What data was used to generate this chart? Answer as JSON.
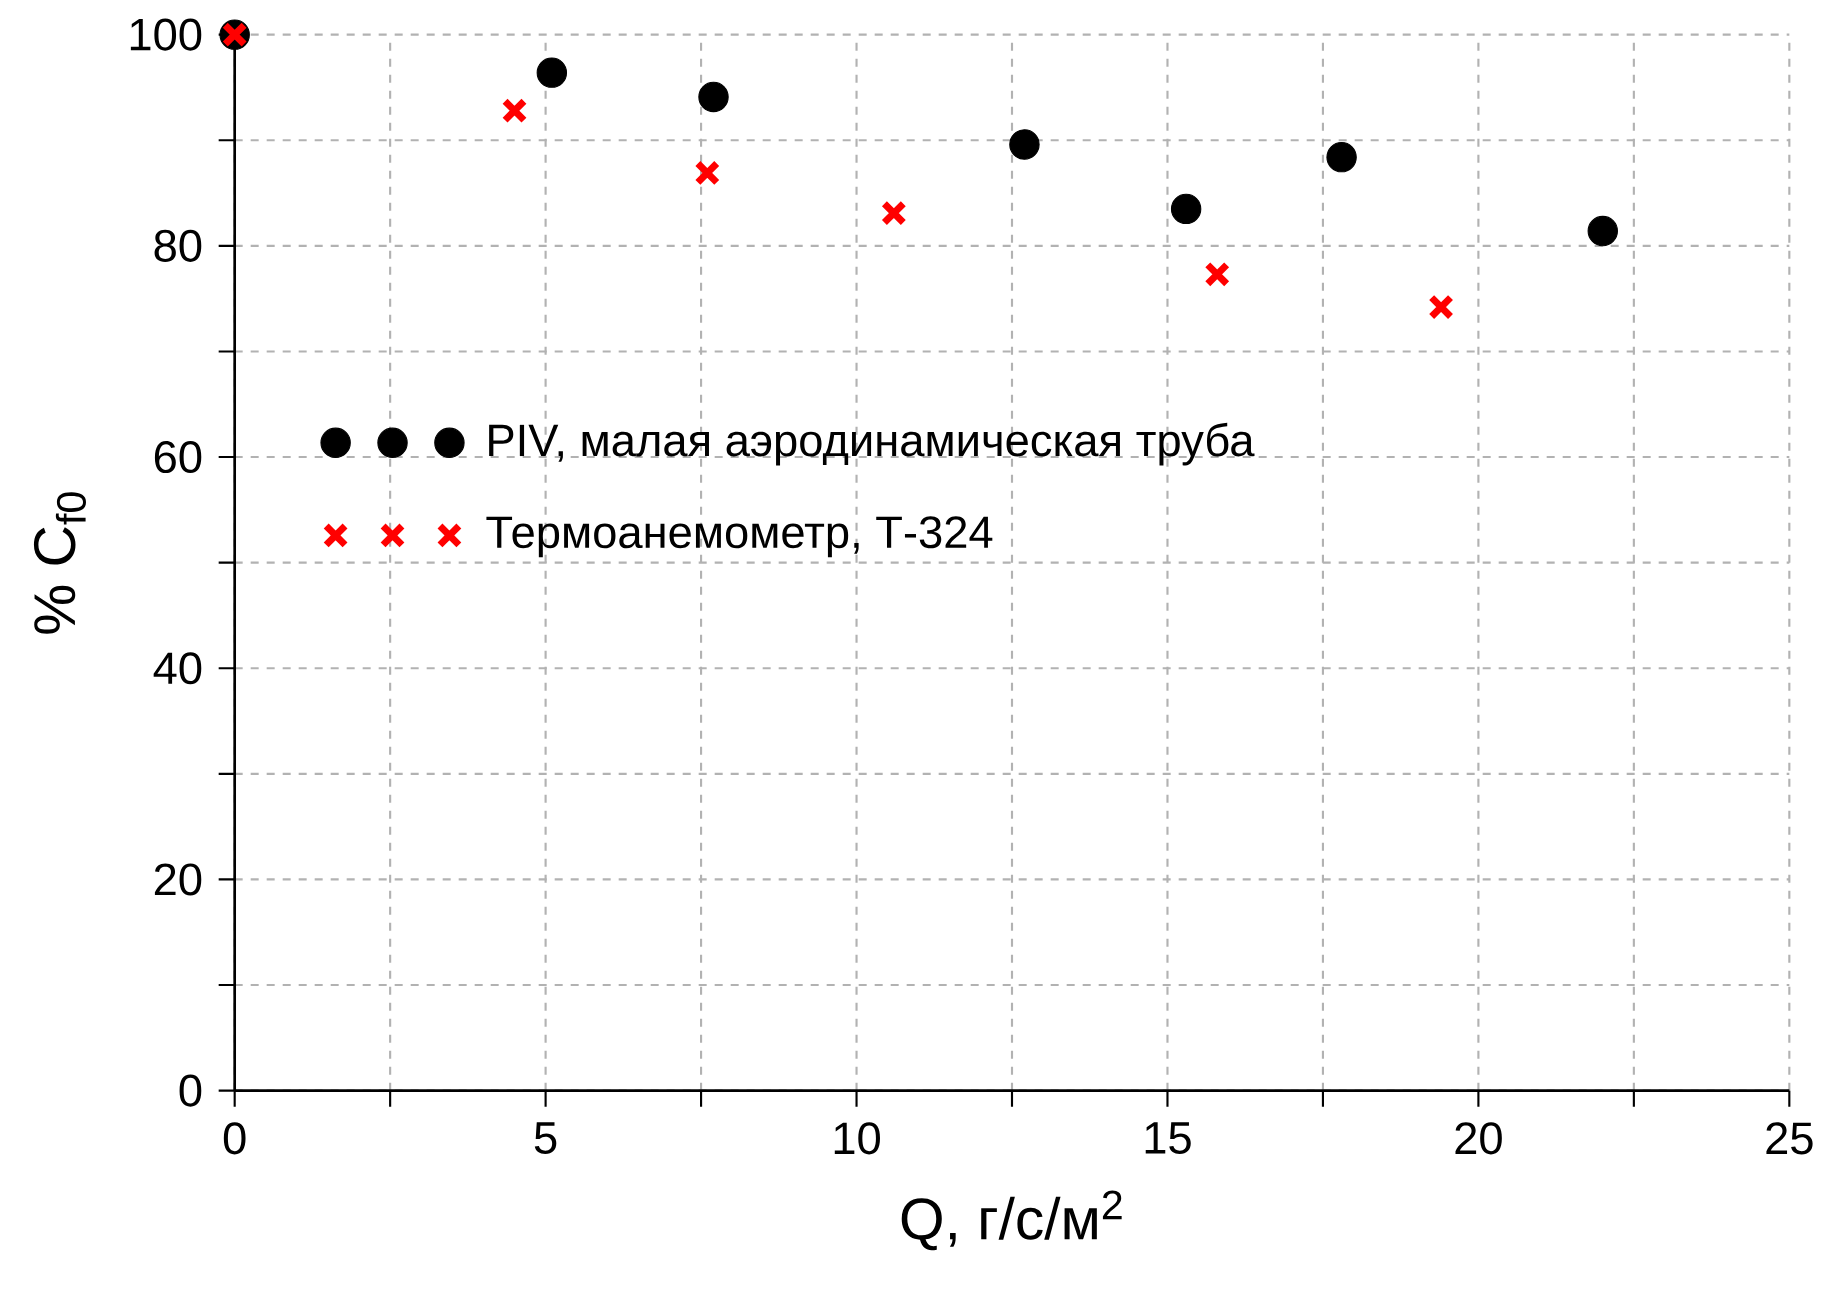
{
  "chart_data": {
    "type": "scatter",
    "xlabel": "Q, г/с/м$^{2}$",
    "ylabel": "% C$_{f0}$",
    "xlim": [
      0,
      25
    ],
    "ylim": [
      0,
      100
    ],
    "xticks": [
      0,
      {
        "value": 2.5,
        "label": null
      },
      5,
      {
        "value": 7.5,
        "label": null
      },
      10,
      {
        "value": 12.5,
        "label": null
      },
      15,
      {
        "value": 17.5,
        "label": null
      },
      20,
      {
        "value": 22.5,
        "label": null
      },
      25
    ],
    "yticks": [
      0,
      {
        "value": 10,
        "label": null
      },
      20,
      {
        "value": 30,
        "label": null
      },
      40,
      {
        "value": 50,
        "label": null
      },
      60,
      {
        "value": 70,
        "label": null
      },
      80,
      {
        "value": 90,
        "label": null
      },
      100
    ],
    "grid": true,
    "legend": "left",
    "series": [
      {
        "name": "PIV, малая аэродинамическая труба",
        "color": "#000000",
        "marker": "circle",
        "x": [
          0,
          5.1,
          7.7,
          12.7,
          15.3,
          17.8,
          22.0
        ],
        "values": [
          100,
          96.4,
          94.1,
          89.6,
          83.5,
          88.4,
          81.4
        ]
      },
      {
        "name": "Термоанемометр, Т-324",
        "color": "#ff0000",
        "marker": "cross",
        "x": [
          0,
          4.5,
          7.6,
          10.6,
          15.8,
          19.4
        ],
        "values": [
          100,
          92.8,
          86.9,
          83.1,
          77.3,
          74.2
        ]
      }
    ]
  }
}
